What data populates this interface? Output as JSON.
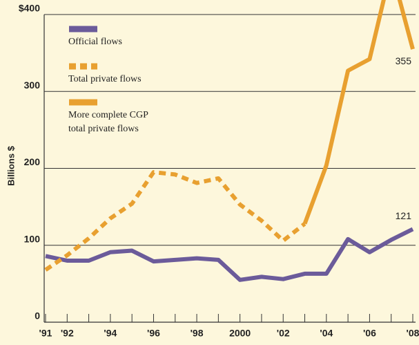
{
  "chart_data": {
    "type": "line",
    "y_label": "Billions $",
    "x": [
      1991,
      1992,
      1993,
      1994,
      1995,
      1996,
      1997,
      1998,
      1999,
      2000,
      2001,
      2002,
      2003,
      2004,
      2005,
      2006,
      2007,
      2008
    ],
    "xticks": [
      {
        "value": 1991,
        "label": "'91"
      },
      {
        "value": 1992,
        "label": "'92"
      },
      {
        "value": 1994,
        "label": "'94"
      },
      {
        "value": 1996,
        "label": "'96"
      },
      {
        "value": 1998,
        "label": "'98"
      },
      2000,
      {
        "value": 2002,
        "label": "'02"
      },
      {
        "value": 2004,
        "label": "'04"
      },
      {
        "value": 2006,
        "label": "'06"
      },
      {
        "value": 2008,
        "label": "'08"
      }
    ],
    "xlim": [
      1991,
      2008
    ],
    "ylim": [
      0,
      400
    ],
    "yticks": [
      0,
      100,
      200,
      300,
      {
        "value": 400,
        "label": "$400"
      }
    ],
    "grid": true,
    "series": [
      {
        "name": "Official flows",
        "color": "#6b5b9a",
        "style": "solid",
        "values": [
          86,
          80,
          80,
          91,
          93,
          79,
          81,
          83,
          81,
          55,
          59,
          56,
          63,
          63,
          108,
          91,
          107,
          121
        ],
        "value_labels": [
          null,
          null,
          null,
          null,
          null,
          null,
          null,
          null,
          null,
          null,
          null,
          null,
          null,
          null,
          null,
          null,
          null,
          "121"
        ]
      },
      {
        "name": "Total private flows",
        "color": "#e8a030",
        "style": "dotted",
        "values": [
          68,
          87,
          109,
          135,
          154,
          195,
          192,
          181,
          187,
          153,
          132,
          106,
          128,
          null,
          null,
          null,
          null,
          null
        ]
      },
      {
        "name": "More complete CGP total private flows",
        "color": "#e8a030",
        "style": "solid",
        "values": [
          null,
          null,
          null,
          null,
          null,
          null,
          null,
          null,
          null,
          null,
          null,
          null,
          128,
          204,
          327,
          342,
          460,
          355
        ],
        "value_labels": [
          null,
          null,
          null,
          null,
          null,
          null,
          null,
          null,
          null,
          null,
          null,
          null,
          null,
          null,
          null,
          null,
          null,
          "355"
        ]
      }
    ]
  }
}
